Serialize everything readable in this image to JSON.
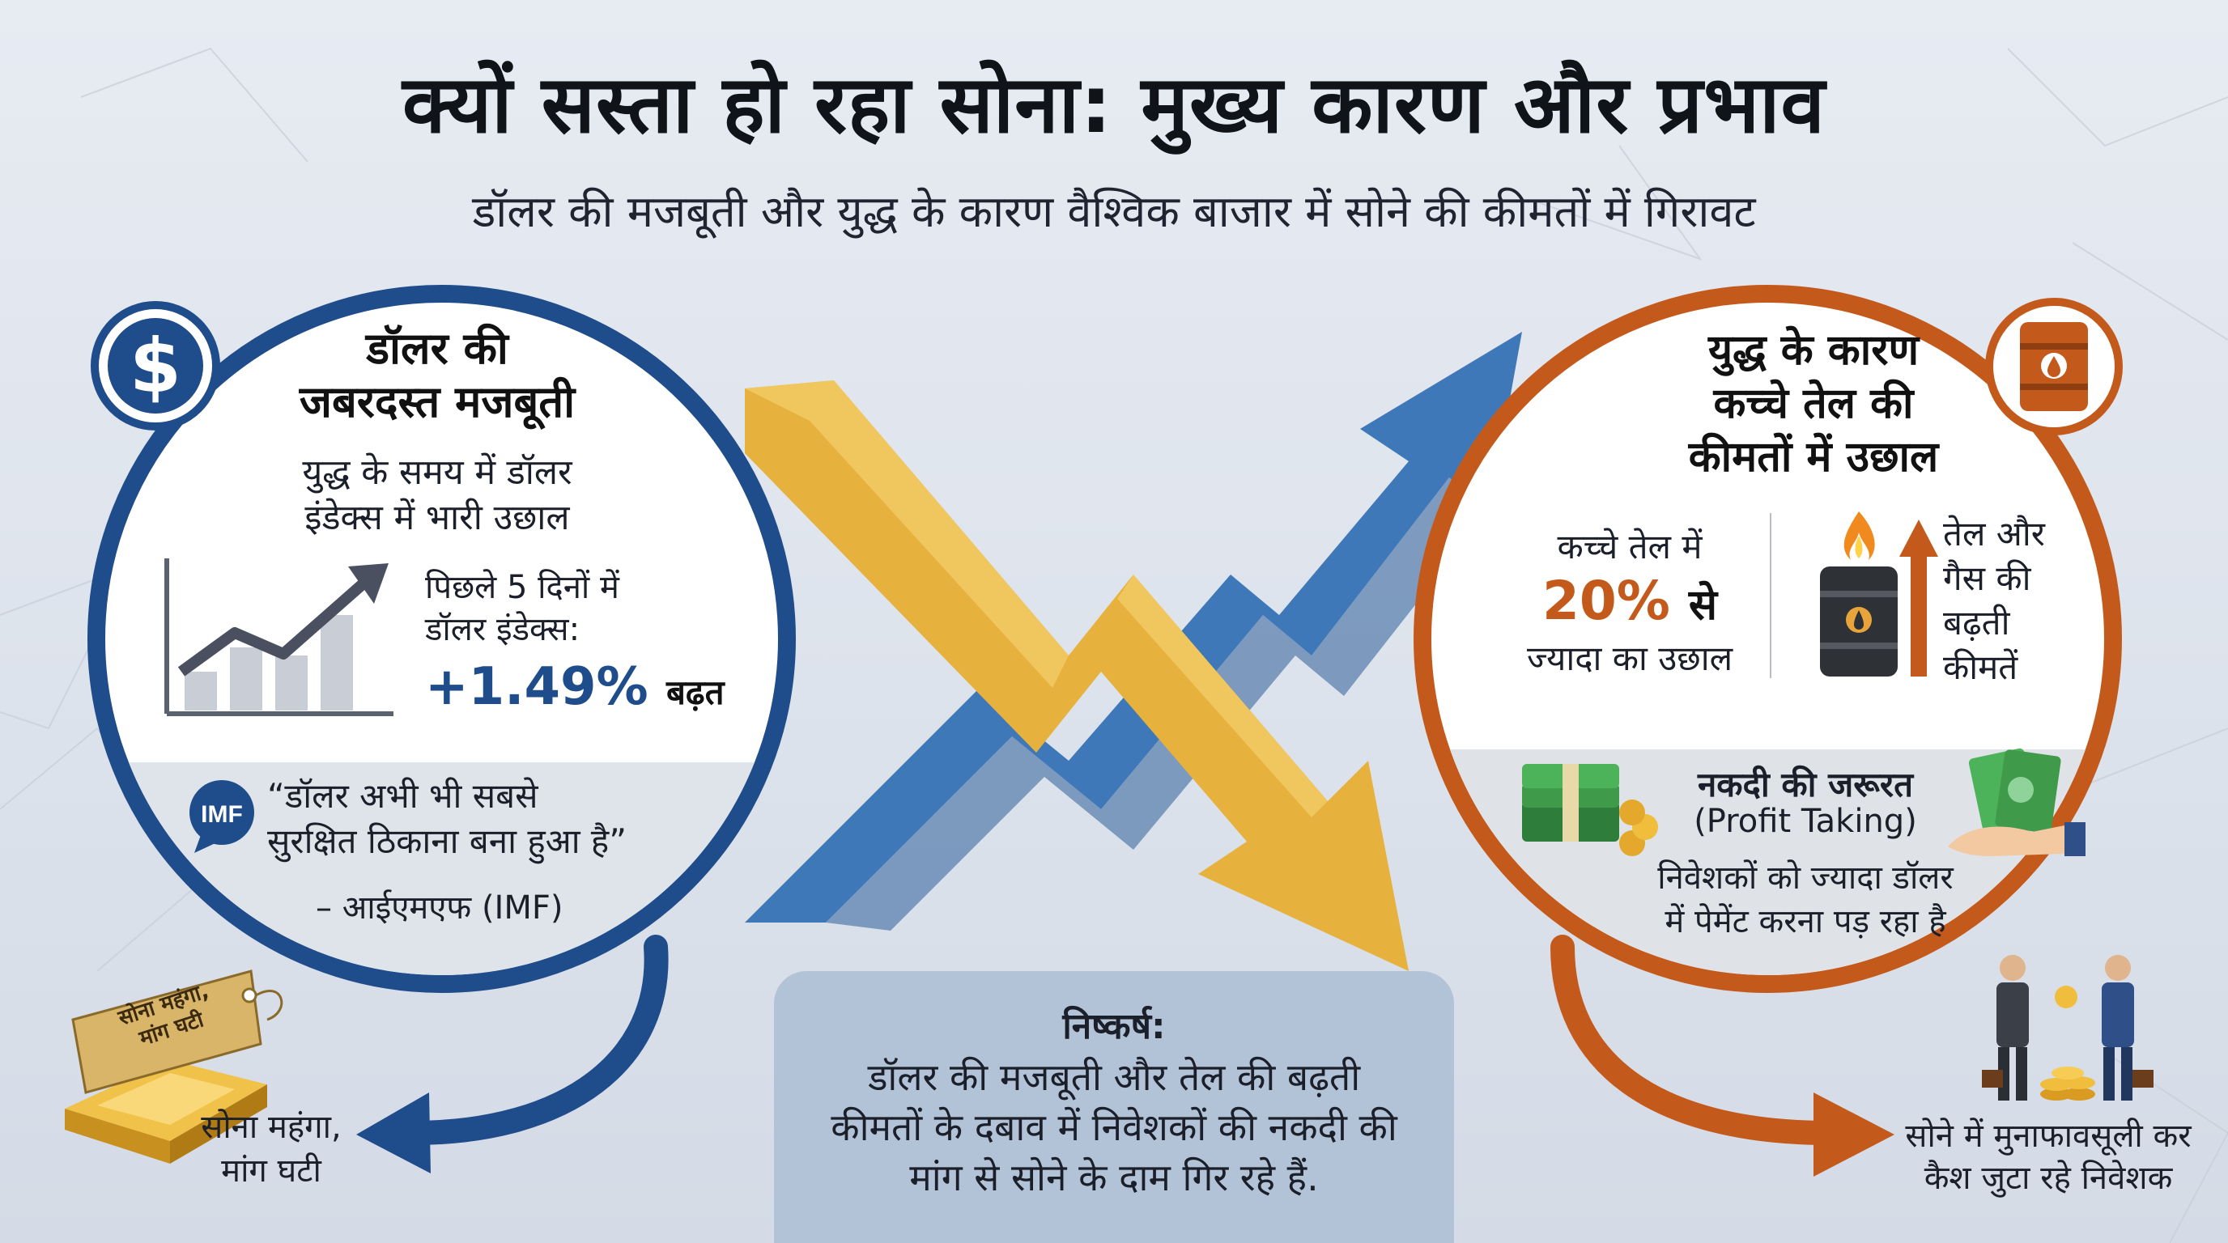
{
  "header": {
    "title": "क्यों सस्ता हो रहा सोना: मुख्य कारण और प्रभाव",
    "subtitle": "डॉलर की मजबूती और युद्ध के कारण वैश्विक बाजार में सोने की कीमतों में गिरावट"
  },
  "left_panel": {
    "icon": "dollar-icon",
    "title_line1": "डॉलर की",
    "title_line2": "जबरदस्त मजबूती",
    "desc_line1": "युद्ध के समय में डॉलर",
    "desc_line2": "इंडेक्स में भारी उछाल",
    "stat_label_line1": "पिछले 5 दिनों में",
    "stat_label_line2": "डॉलर इंडेक्स:",
    "stat_value": "+1.49%",
    "stat_suffix": "बढ़त",
    "imf_badge": "IMF",
    "quote_line1": "“डॉलर अभी भी सबसे",
    "quote_line2": "सुरक्षित ठिकाना बना हुआ है”",
    "quote_source": "– आईएमएफ (IMF)",
    "color": "#1f4c8a"
  },
  "right_panel": {
    "icon": "oil-barrel-icon",
    "title_line1": "युद्ध के कारण",
    "title_line2": "कच्चे तेल की",
    "title_line3": "कीमतों में उछाल",
    "stat_label": "कच्चे तेल में",
    "stat_value": "20%",
    "stat_suffix": "से",
    "stat_sub": "ज्यादा का उछाल",
    "side_line1": "तेल और",
    "side_line2": "गैस की",
    "side_line3": "बढ़ती",
    "side_line4": "कीमतें",
    "cash_title": "नकदी की जरूरत",
    "cash_sub": "(Profit Taking)",
    "cash_desc_line1": "निवेशकों को ज्यादा डॉलर",
    "cash_desc_line2": "में पेमेंट करना पड़ रहा है",
    "color": "#c35a1c"
  },
  "conclusion": {
    "title": "निष्कर्ष:",
    "line1": "डॉलर की मजबूती और तेल की बढ़ती",
    "line2": "कीमतों के दबाव में निवेशकों की नकदी की",
    "line3": "मांग से सोने के दाम गिर रहे हैं."
  },
  "left_bottom": {
    "tag_line1": "सोना महंगा,",
    "tag_line2": "मांग घटी",
    "label_line1": "सोना महंगा,",
    "label_line2": "मांग घटी"
  },
  "right_bottom": {
    "label_line1": "सोने में मुनाफावसूली कर",
    "label_line2": "कैश जुटा रहे निवेशक"
  },
  "colors": {
    "gold": "#e8b23a",
    "blue_arrow": "#3f78b8"
  }
}
